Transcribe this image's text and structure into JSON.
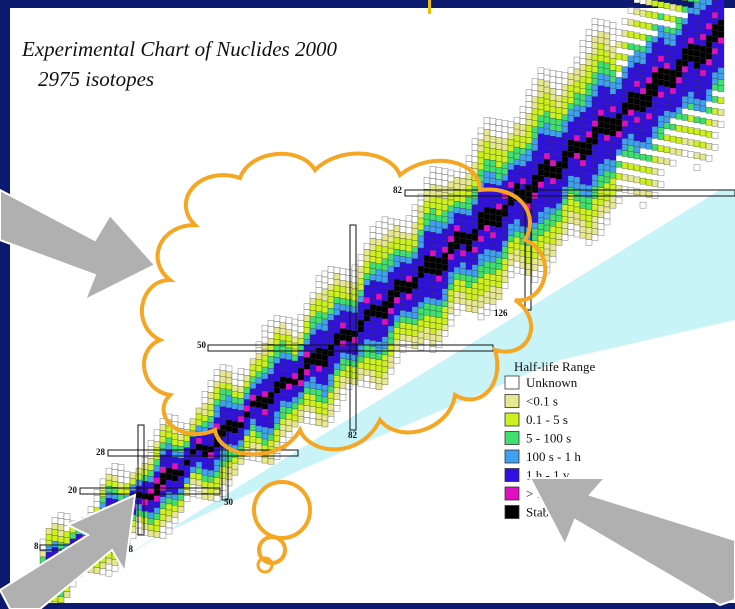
{
  "slide": {
    "title": "Experimental Chart of Nuclides 2000",
    "subtitle": "2975 isotopes",
    "magic_labels": [
      "82",
      "126",
      "50",
      "82",
      "28",
      "20",
      "50",
      "8",
      "28"
    ],
    "legend": {
      "title": "Half-life Range",
      "entries": [
        "Unknown",
        "<0.1 s",
        "0.1 - 5 s",
        "5  - 100 s",
        "100 s - 1 h",
        "1 h - 1 y",
        "> 1 y",
        "Stable"
      ]
    }
  }
}
